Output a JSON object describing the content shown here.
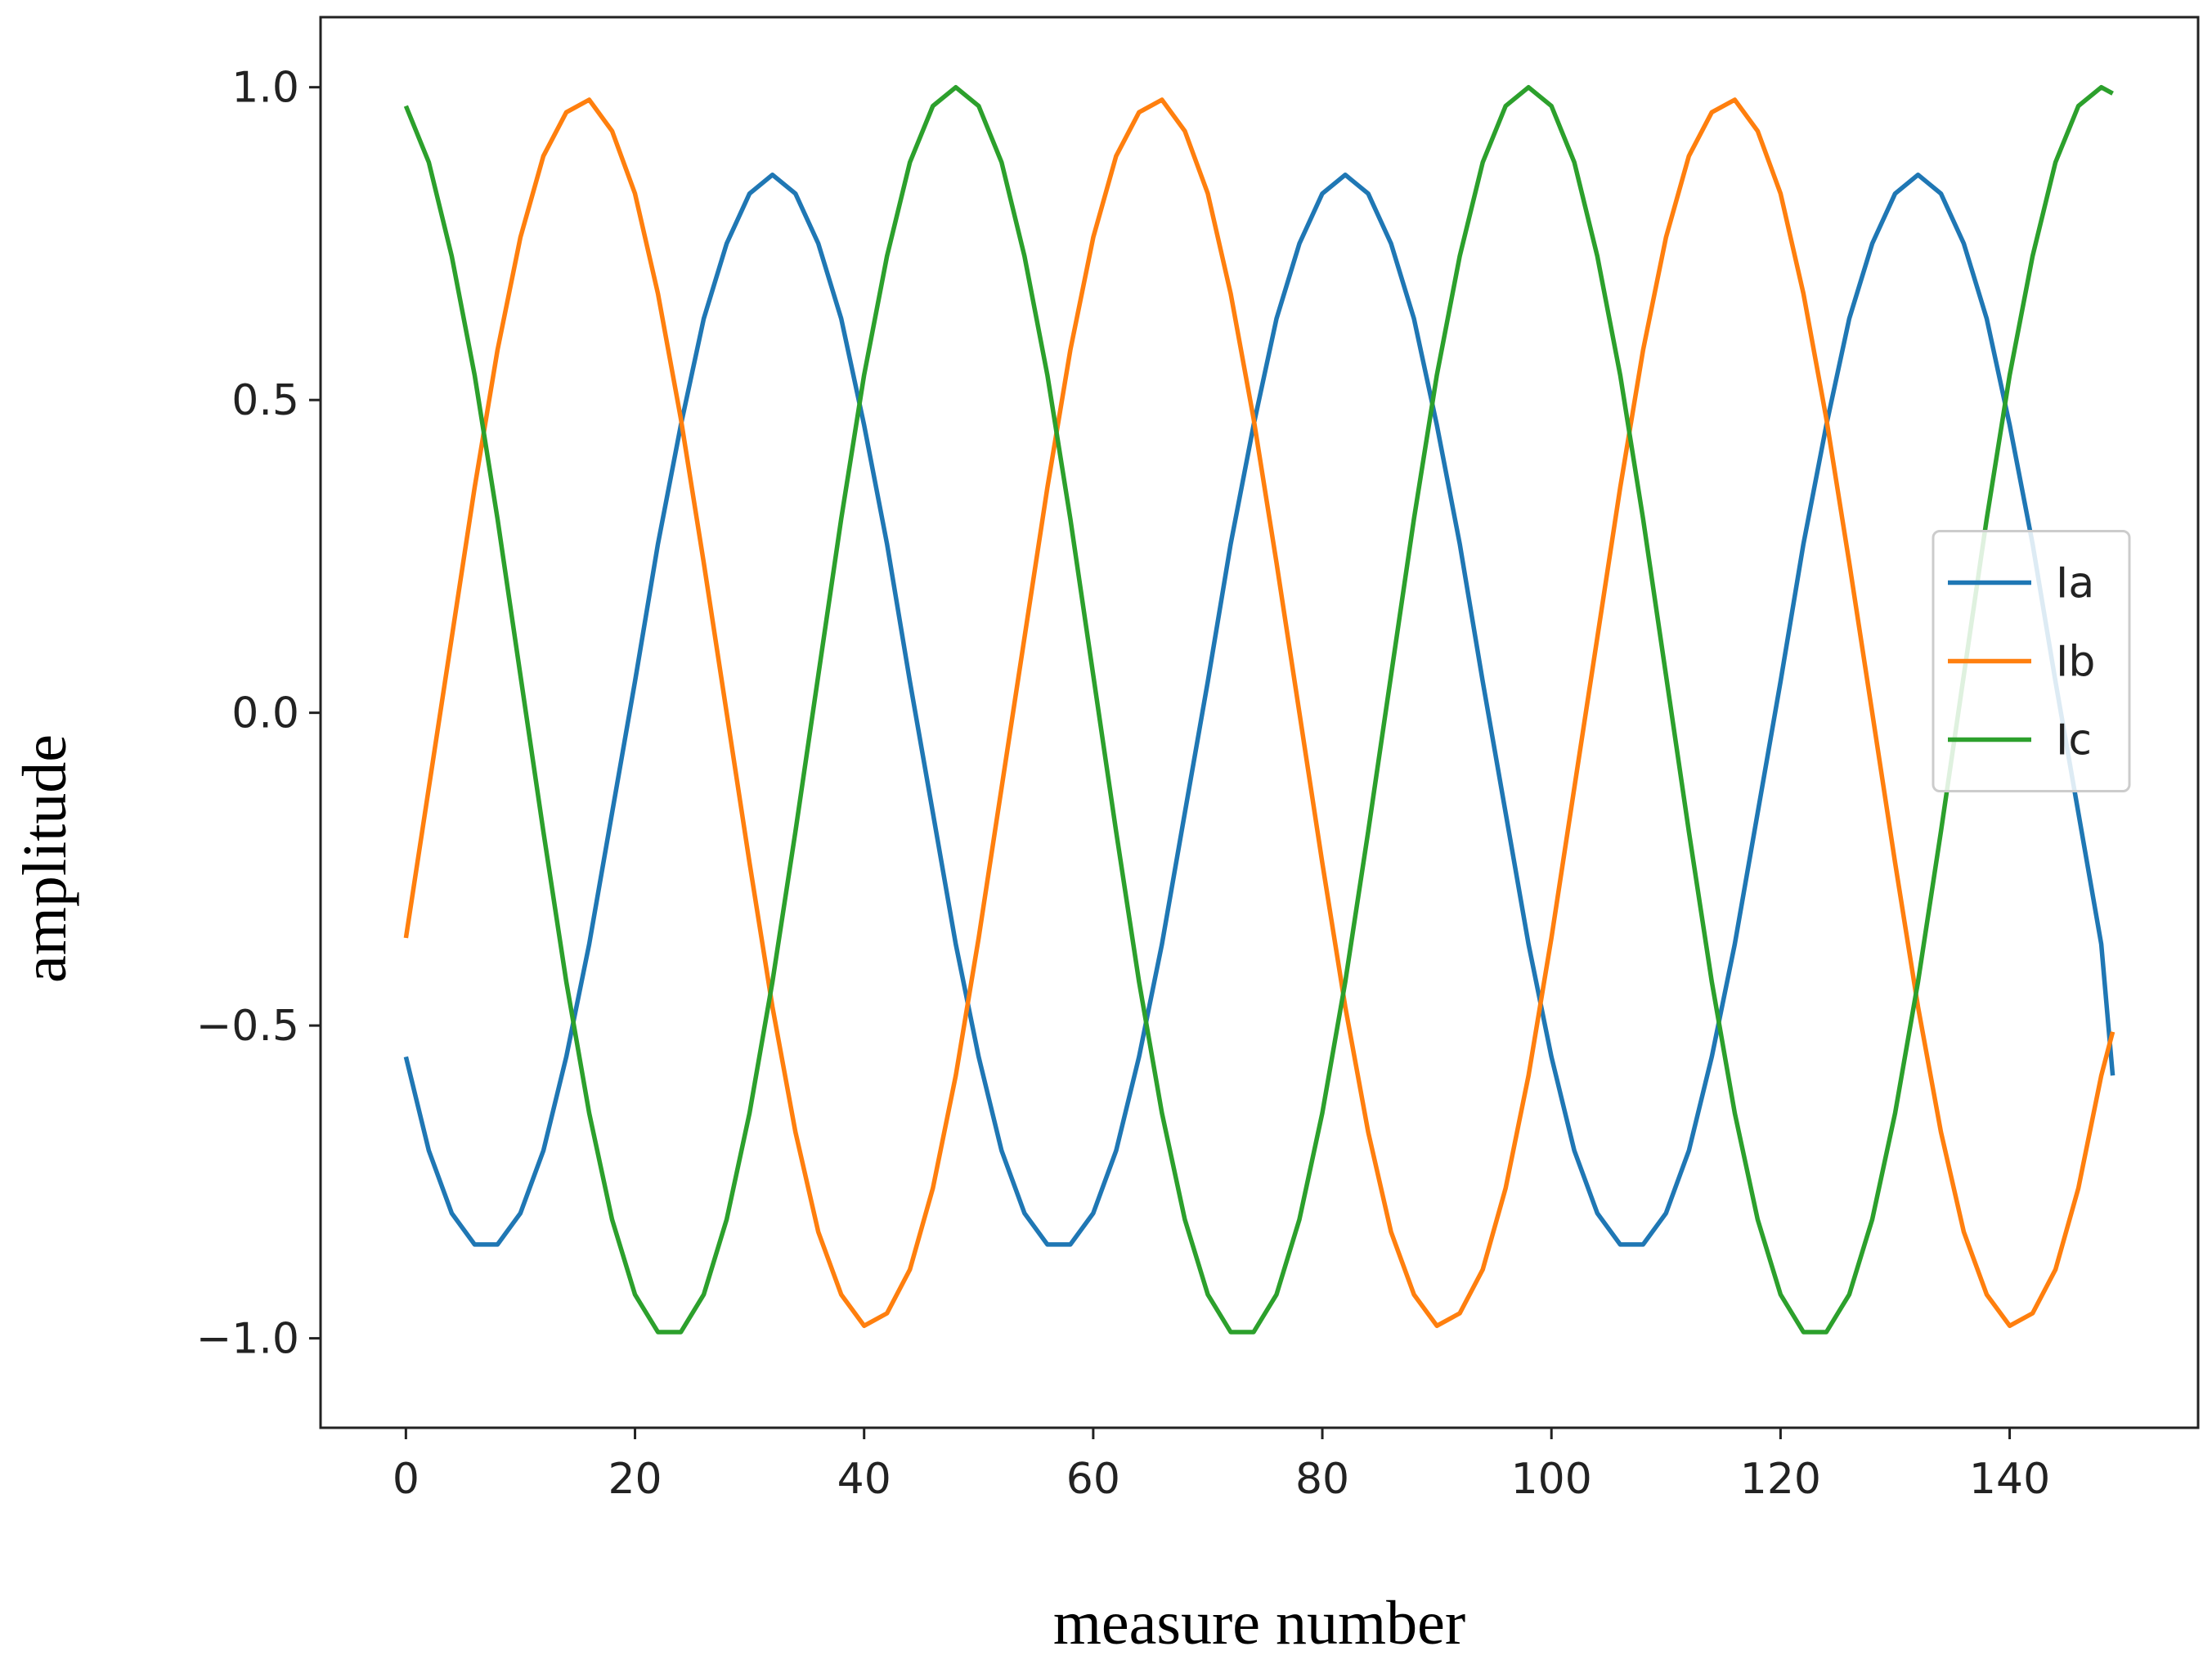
{
  "chart_data": {
    "type": "line",
    "xlabel": "measure number",
    "ylabel": "amplitude",
    "x": [
      0,
      2,
      4,
      6,
      8,
      10,
      12,
      14,
      16,
      18,
      20,
      22,
      24,
      26,
      28,
      30,
      32,
      34,
      36,
      38,
      40,
      42,
      44,
      46,
      48,
      50,
      52,
      54,
      56,
      58,
      60,
      62,
      64,
      66,
      68,
      70,
      72,
      74,
      76,
      78,
      80,
      82,
      84,
      86,
      88,
      90,
      92,
      94,
      96,
      98,
      100,
      102,
      104,
      106,
      108,
      110,
      112,
      114,
      116,
      118,
      120,
      122,
      124,
      126,
      128,
      130,
      132,
      134,
      136,
      138,
      140,
      142,
      144,
      146,
      148,
      149
    ],
    "series": [
      {
        "name": "Ia",
        "color": "#1f77b4",
        "values": [
          -0.55,
          -0.7,
          -0.8,
          -0.85,
          -0.85,
          -0.8,
          -0.7,
          -0.55,
          -0.37,
          -0.16,
          0.05,
          0.27,
          0.46,
          0.63,
          0.75,
          0.83,
          0.86,
          0.83,
          0.75,
          0.63,
          0.46,
          0.27,
          0.05,
          -0.16,
          -0.37,
          -0.55,
          -0.7,
          -0.8,
          -0.85,
          -0.85,
          -0.8,
          -0.7,
          -0.55,
          -0.37,
          -0.16,
          0.05,
          0.27,
          0.46,
          0.63,
          0.75,
          0.83,
          0.86,
          0.83,
          0.75,
          0.63,
          0.46,
          0.27,
          0.05,
          -0.16,
          -0.37,
          -0.55,
          -0.7,
          -0.8,
          -0.85,
          -0.85,
          -0.8,
          -0.7,
          -0.55,
          -0.37,
          -0.16,
          0.05,
          0.27,
          0.46,
          0.63,
          0.75,
          0.83,
          0.86,
          0.83,
          0.75,
          0.63,
          0.46,
          0.27,
          0.05,
          -0.16,
          -0.37,
          -0.58
        ]
      },
      {
        "name": "Ib",
        "color": "#ff7f0e",
        "values": [
          -0.36,
          -0.12,
          0.12,
          0.36,
          0.58,
          0.76,
          0.89,
          0.96,
          0.98,
          0.93,
          0.83,
          0.67,
          0.47,
          0.24,
          0,
          -0.24,
          -0.47,
          -0.67,
          -0.83,
          -0.93,
          -0.98,
          -0.96,
          -0.89,
          -0.76,
          -0.58,
          -0.36,
          -0.12,
          0.12,
          0.36,
          0.58,
          0.76,
          0.89,
          0.96,
          0.98,
          0.93,
          0.83,
          0.67,
          0.47,
          0.24,
          0,
          -0.24,
          -0.47,
          -0.67,
          -0.83,
          -0.93,
          -0.98,
          -0.96,
          -0.89,
          -0.76,
          -0.58,
          -0.36,
          -0.12,
          0.12,
          0.36,
          0.58,
          0.76,
          0.89,
          0.96,
          0.98,
          0.93,
          0.83,
          0.67,
          0.47,
          0.24,
          0,
          -0.24,
          -0.47,
          -0.67,
          -0.83,
          -0.93,
          -0.98,
          -0.96,
          -0.89,
          -0.76,
          -0.58,
          -0.51
        ]
      },
      {
        "name": "Ic",
        "color": "#2ca02c",
        "values": [
          0.97,
          0.88,
          0.73,
          0.54,
          0.31,
          0.06,
          -0.19,
          -0.43,
          -0.64,
          -0.81,
          -0.93,
          -0.99,
          -0.99,
          -0.93,
          -0.81,
          -0.64,
          -0.43,
          -0.19,
          0.06,
          0.31,
          0.54,
          0.73,
          0.88,
          0.97,
          1.0,
          0.97,
          0.88,
          0.73,
          0.54,
          0.31,
          0.06,
          -0.19,
          -0.43,
          -0.64,
          -0.81,
          -0.93,
          -0.99,
          -0.99,
          -0.93,
          -0.81,
          -0.64,
          -0.43,
          -0.19,
          0.06,
          0.31,
          0.54,
          0.73,
          0.88,
          0.97,
          1.0,
          0.97,
          0.88,
          0.73,
          0.54,
          0.31,
          0.06,
          -0.19,
          -0.43,
          -0.64,
          -0.81,
          -0.93,
          -0.99,
          -0.99,
          -0.93,
          -0.81,
          -0.64,
          -0.43,
          -0.19,
          0.06,
          0.31,
          0.54,
          0.73,
          0.88,
          0.97,
          1.0,
          0.99
        ]
      }
    ],
    "xlim": [
      -7.45,
      156.45
    ],
    "ylim": [
      -1.143,
      1.112
    ],
    "xticks": [
      0,
      20,
      40,
      60,
      80,
      100,
      120,
      140
    ],
    "yticks": [
      {
        "value": -1,
        "label": "−1.0"
      },
      {
        "value": -0.5,
        "label": "−0.5"
      },
      {
        "value": 0,
        "label": "0.0"
      },
      {
        "value": 0.5,
        "label": "0.5"
      },
      {
        "value": 1,
        "label": "1.0"
      }
    ],
    "legend": "center right",
    "grid": false
  }
}
